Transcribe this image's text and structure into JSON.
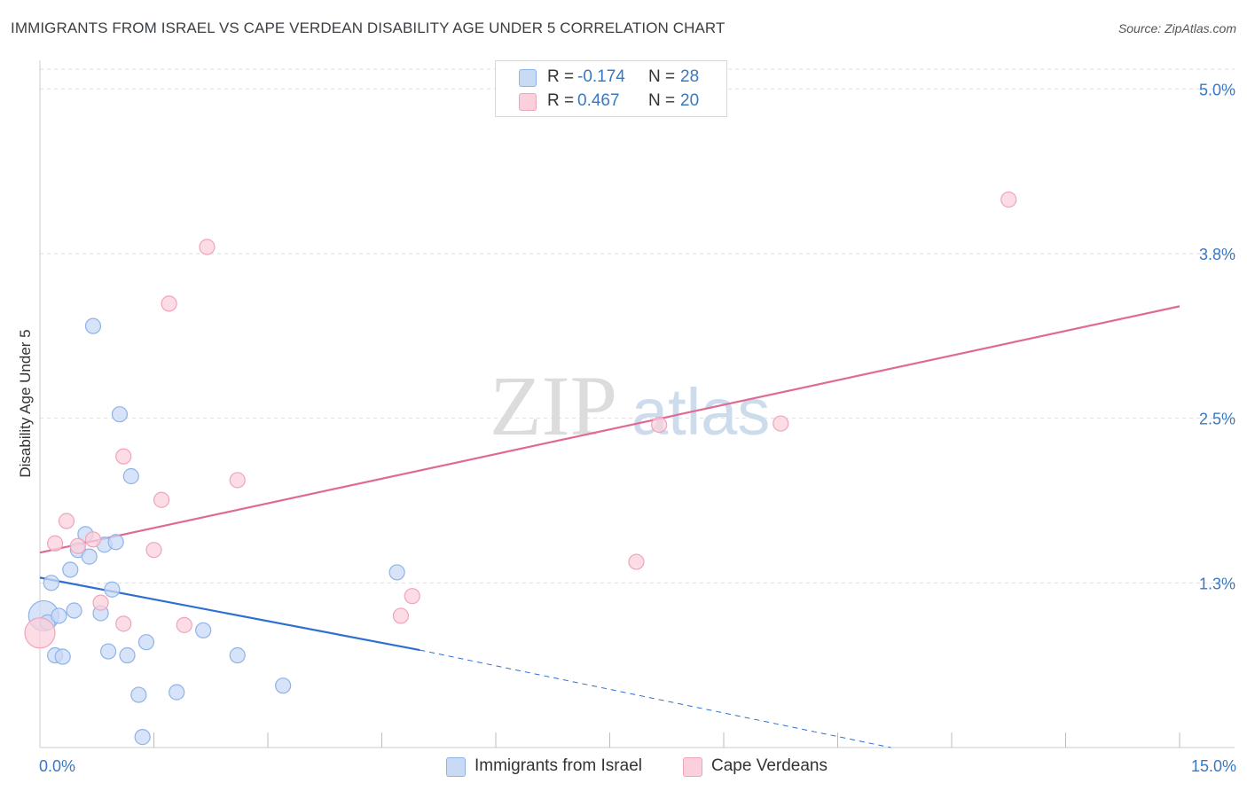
{
  "title": "IMMIGRANTS FROM ISRAEL VS CAPE VERDEAN DISABILITY AGE UNDER 5 CORRELATION CHART",
  "source": "Source: ZipAtlas.com",
  "watermark": {
    "zip": "ZIP",
    "atlas": "atlas"
  },
  "legend_top": {
    "rows": [
      {
        "r_label": "R =",
        "r_value": "-0.174",
        "n_label": "N =",
        "n_value": "28",
        "fill": "#c9daf5",
        "stroke": "#8fb3e6"
      },
      {
        "r_label": "R =",
        "r_value": "0.467",
        "n_label": "N =",
        "n_value": "20",
        "fill": "#fbd0dc",
        "stroke": "#f0a4ba"
      }
    ]
  },
  "legend_bottom": [
    {
      "label": "Immigrants from Israel",
      "fill": "#c9daf5",
      "stroke": "#8fb3e6"
    },
    {
      "label": "Cape Verdeans",
      "fill": "#fbd0dc",
      "stroke": "#f0a4ba"
    }
  ],
  "chart_data": {
    "type": "scatter",
    "title": "IMMIGRANTS FROM ISRAEL VS CAPE VERDEAN DISABILITY AGE UNDER 5 CORRELATION CHART",
    "xlabel": "",
    "ylabel": "Disability Age Under 5",
    "xlim": [
      0,
      15
    ],
    "ylim": [
      0,
      5.15
    ],
    "x_tick_labels": [
      {
        "value": 0,
        "label": "0.0%"
      },
      {
        "value": 15,
        "label": "15.0%"
      }
    ],
    "y_tick_labels": [
      {
        "value": 1.25,
        "label": "1.3%"
      },
      {
        "value": 2.5,
        "label": "2.5%"
      },
      {
        "value": 3.75,
        "label": "3.8%"
      },
      {
        "value": 5.0,
        "label": "5.0%"
      }
    ],
    "x_minor_ticks": [
      1.5,
      3.0,
      4.5,
      6.0,
      7.5,
      9.0,
      10.5,
      12.0,
      13.5
    ],
    "grid_y": [
      1.25,
      2.5,
      3.75,
      5.0,
      5.15
    ],
    "series": [
      {
        "name": "Immigrants from Israel",
        "color": "#8fb3e6",
        "fill": "#c9daf5",
        "line_color": "#2f6fd0",
        "points": [
          {
            "x": 0.05,
            "y": 1.0,
            "big": true
          },
          {
            "x": 0.15,
            "y": 1.25
          },
          {
            "x": 0.1,
            "y": 0.95
          },
          {
            "x": 0.2,
            "y": 0.7
          },
          {
            "x": 0.3,
            "y": 0.69
          },
          {
            "x": 0.4,
            "y": 1.35
          },
          {
            "x": 0.45,
            "y": 1.04
          },
          {
            "x": 0.5,
            "y": 1.5
          },
          {
            "x": 0.6,
            "y": 1.62
          },
          {
            "x": 0.65,
            "y": 1.45
          },
          {
            "x": 0.7,
            "y": 3.2
          },
          {
            "x": 0.8,
            "y": 1.02
          },
          {
            "x": 0.85,
            "y": 1.54
          },
          {
            "x": 0.9,
            "y": 0.73
          },
          {
            "x": 0.95,
            "y": 1.2
          },
          {
            "x": 1.0,
            "y": 1.56
          },
          {
            "x": 1.05,
            "y": 2.53
          },
          {
            "x": 1.15,
            "y": 0.7
          },
          {
            "x": 1.2,
            "y": 2.06
          },
          {
            "x": 1.3,
            "y": 0.4
          },
          {
            "x": 1.35,
            "y": 0.08
          },
          {
            "x": 1.4,
            "y": 0.8
          },
          {
            "x": 1.8,
            "y": 0.42
          },
          {
            "x": 2.15,
            "y": 0.89
          },
          {
            "x": 2.6,
            "y": 0.7
          },
          {
            "x": 3.2,
            "y": 0.47
          },
          {
            "x": 4.7,
            "y": 1.33
          },
          {
            "x": 0.25,
            "y": 1.0
          }
        ],
        "trend": {
          "x1": 0,
          "y1": 1.29,
          "x2": 5.0,
          "y2": 0.74,
          "dash_to_x": 11.2,
          "dash_to_y": 0.0
        }
      },
      {
        "name": "Cape Verdeans",
        "color": "#f0a4ba",
        "fill": "#fbd0dc",
        "line_color": "#e06a93",
        "points": [
          {
            "x": 0.0,
            "y": 0.87,
            "big": true
          },
          {
            "x": 0.2,
            "y": 1.55
          },
          {
            "x": 0.35,
            "y": 1.72
          },
          {
            "x": 0.5,
            "y": 1.53
          },
          {
            "x": 0.7,
            "y": 1.58
          },
          {
            "x": 0.8,
            "y": 1.1
          },
          {
            "x": 1.1,
            "y": 0.94
          },
          {
            "x": 1.1,
            "y": 2.21
          },
          {
            "x": 1.5,
            "y": 1.5
          },
          {
            "x": 1.6,
            "y": 1.88
          },
          {
            "x": 1.7,
            "y": 3.37
          },
          {
            "x": 1.9,
            "y": 0.93
          },
          {
            "x": 2.2,
            "y": 3.8
          },
          {
            "x": 2.6,
            "y": 2.03
          },
          {
            "x": 4.75,
            "y": 1.0
          },
          {
            "x": 4.9,
            "y": 1.15
          },
          {
            "x": 7.85,
            "y": 1.41
          },
          {
            "x": 8.15,
            "y": 2.45
          },
          {
            "x": 9.75,
            "y": 2.46
          },
          {
            "x": 12.75,
            "y": 4.16
          }
        ],
        "trend": {
          "x1": 0,
          "y1": 1.48,
          "x2": 15.0,
          "y2": 3.35
        }
      }
    ]
  }
}
